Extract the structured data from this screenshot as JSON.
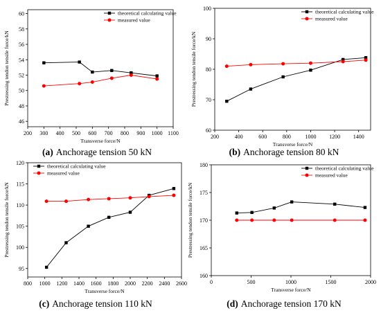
{
  "chart_data": [
    {
      "type": "line",
      "caption_label": "(a)",
      "caption": "Anchorage tension 50 kN",
      "x_label": "Transverse force/N",
      "y_label": "Prestressing tendon tensile force/kN",
      "xlim": [
        200,
        1100
      ],
      "xticks": [
        200,
        300,
        400,
        500,
        600,
        700,
        800,
        900,
        1000,
        1100
      ],
      "ylim": [
        45.3,
        60.5
      ],
      "yticks": [
        46,
        48,
        50,
        52,
        54,
        56,
        58,
        60
      ],
      "legend": "upper right",
      "x": [
        300,
        520,
        600,
        720,
        840,
        1000
      ],
      "series": [
        {
          "name": "theoretical calculating value",
          "color": "#000000",
          "marker": "square",
          "values": [
            53.6,
            53.7,
            52.4,
            52.6,
            52.3,
            51.9
          ]
        },
        {
          "name": "measured value",
          "color": "#ff0000",
          "marker": "circle",
          "values": [
            50.6,
            50.9,
            51.1,
            51.6,
            52.0,
            51.5
          ]
        }
      ]
    },
    {
      "type": "line",
      "caption_label": "(b)",
      "caption": "Anchorage tension 80 kN",
      "x_label": "Transverse force/N",
      "y_label": "Prestressing tendon tensile force/kN",
      "xlim": [
        200,
        1500
      ],
      "xticks": [
        200,
        400,
        600,
        800,
        1000,
        1200,
        1400
      ],
      "ylim": [
        60,
        100
      ],
      "yticks": [
        60,
        70,
        80,
        90,
        100
      ],
      "legend": "upper right",
      "x": [
        300,
        500,
        770,
        1000,
        1270,
        1460
      ],
      "series": [
        {
          "name": "theoretical calculating value",
          "color": "#000000",
          "marker": "square",
          "values": [
            69.5,
            73.5,
            77.5,
            79.7,
            83.2,
            83.8
          ]
        },
        {
          "name": "measured value",
          "color": "#ff0000",
          "marker": "circle",
          "values": [
            81.0,
            81.5,
            81.8,
            82.0,
            82.5,
            83.0
          ]
        }
      ]
    },
    {
      "type": "line",
      "caption_label": "(c)",
      "caption": "Anchorage tension 110 kN",
      "x_label": "Transverse force/N",
      "y_label": "Prestressing tendon tensile force/kN",
      "xlim": [
        800,
        2600
      ],
      "xticks": [
        800,
        1000,
        1200,
        1400,
        1600,
        1800,
        2000,
        2200,
        2400,
        2600
      ],
      "ylim": [
        93,
        120
      ],
      "yticks": [
        95,
        100,
        105,
        110,
        115,
        120
      ],
      "legend": "upper left",
      "x": [
        1020,
        1250,
        1510,
        1750,
        2000,
        2220,
        2510
      ],
      "series": [
        {
          "name": "theoretical calculating value",
          "color": "#000000",
          "marker": "square",
          "values": [
            95.3,
            101.1,
            105.0,
            107.1,
            108.3,
            112.3,
            113.9
          ]
        },
        {
          "name": "measured value",
          "color": "#ff0000",
          "marker": "circle",
          "values": [
            110.9,
            110.9,
            111.3,
            111.5,
            111.7,
            112.0,
            112.3
          ]
        }
      ]
    },
    {
      "type": "line",
      "caption_label": "(d)",
      "caption": "Anchorage tension 170 kN",
      "x_label": "Transverse force/N",
      "y_label": "Prestressing tendon tensile force/kN",
      "xlim": [
        0,
        2000
      ],
      "xticks": [
        0,
        500,
        1000,
        1500,
        2000
      ],
      "ylim": [
        160,
        180
      ],
      "yticks": [
        160,
        165,
        170,
        175,
        180
      ],
      "legend": "upper right",
      "x": [
        320,
        510,
        790,
        1010,
        1550,
        1930
      ],
      "series": [
        {
          "name": "theoretical calculating value",
          "color": "#000000",
          "marker": "square",
          "values": [
            171.3,
            171.4,
            172.2,
            173.3,
            172.9,
            172.3
          ]
        },
        {
          "name": "measured value",
          "color": "#ff0000",
          "marker": "circle",
          "values": [
            170.0,
            170.0,
            170.0,
            170.0,
            170.0,
            170.0
          ]
        }
      ]
    }
  ]
}
